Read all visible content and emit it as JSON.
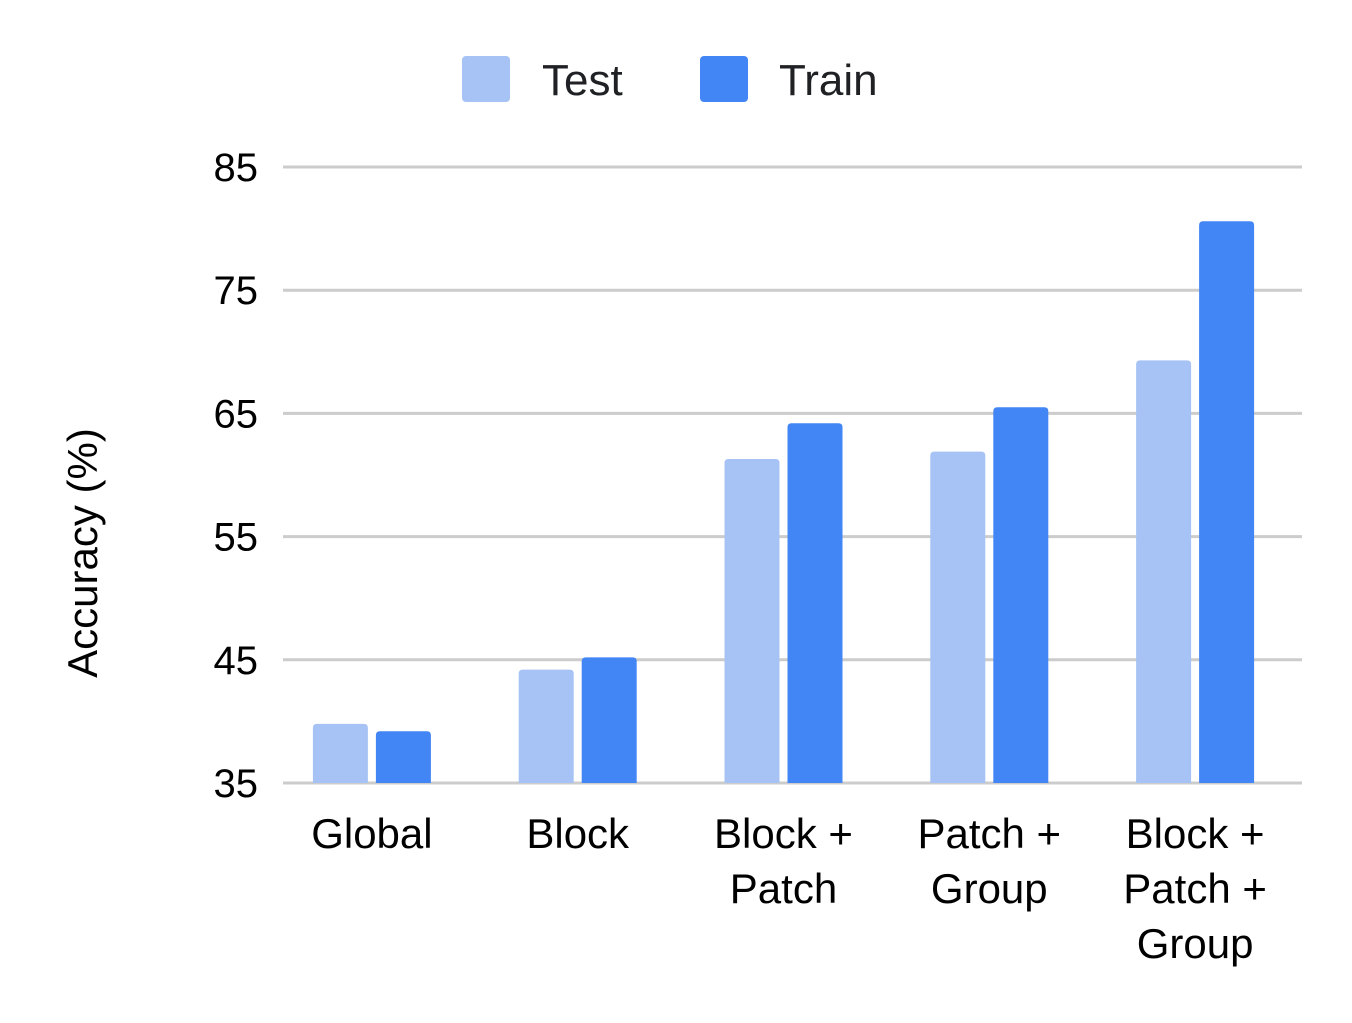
{
  "chart_data": {
    "type": "bar",
    "title": "",
    "xlabel": "",
    "ylabel": "Accuracy (%)",
    "ylim": [
      35,
      85
    ],
    "yticks": [
      35,
      45,
      55,
      65,
      75,
      85
    ],
    "grid": true,
    "legend_position": "top-center",
    "categories": [
      [
        "Global"
      ],
      [
        "Block"
      ],
      [
        "Block +",
        "Patch"
      ],
      [
        "Patch +",
        "Group"
      ],
      [
        "Block +",
        "Patch +",
        "Group"
      ]
    ],
    "series": [
      {
        "name": "Test",
        "color": "#a7c3f5",
        "values": [
          39.8,
          44.2,
          61.3,
          61.9,
          69.3
        ]
      },
      {
        "name": "Train",
        "color": "#4285f4",
        "values": [
          39.2,
          45.2,
          64.2,
          65.5,
          80.6
        ]
      }
    ]
  }
}
